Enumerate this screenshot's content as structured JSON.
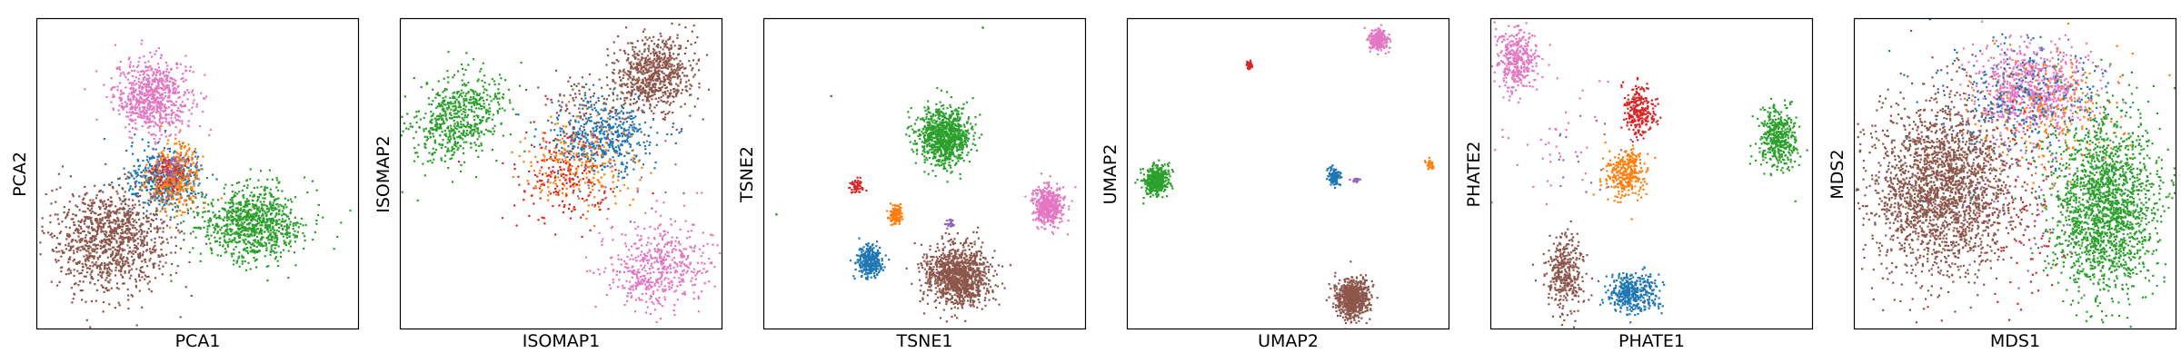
{
  "colors": {
    "blue": "#1f77b4",
    "orange": "#ff7f0e",
    "green": "#2ca02c",
    "red": "#d62728",
    "purple": "#9467bd",
    "brown": "#8c564b",
    "pink": "#e377c2"
  },
  "chart_data": [
    {
      "type": "scatter",
      "xlabel": "PCA1",
      "ylabel": "PCA2",
      "xlim": [
        0,
        100
      ],
      "ylim": [
        0,
        100
      ],
      "grid": false,
      "clusters": [
        {
          "color": "pink",
          "cx": 36,
          "cy": 75,
          "sx": 6,
          "sy": 6,
          "n": 700
        },
        {
          "color": "blue",
          "cx": 40,
          "cy": 48,
          "sx": 6,
          "sy": 5,
          "n": 450
        },
        {
          "color": "orange",
          "cx": 43,
          "cy": 49,
          "sx": 4,
          "sy": 5,
          "n": 350
        },
        {
          "color": "red",
          "cx": 41,
          "cy": 50,
          "sx": 3,
          "sy": 3,
          "n": 80
        },
        {
          "color": "purple",
          "cx": 42,
          "cy": 51,
          "sx": 3,
          "sy": 3,
          "n": 60
        },
        {
          "color": "green",
          "cx": 67,
          "cy": 34,
          "sx": 8,
          "sy": 6,
          "n": 900
        },
        {
          "color": "brown",
          "cx": 23,
          "cy": 29,
          "sx": 9,
          "sy": 8,
          "n": 1100
        }
      ]
    },
    {
      "type": "scatter",
      "xlabel": "ISOMAP1",
      "ylabel": "ISOMAP2",
      "xlim": [
        0,
        100
      ],
      "ylim": [
        0,
        100
      ],
      "grid": false,
      "clusters": [
        {
          "color": "green",
          "cx": 18,
          "cy": 68,
          "sx": 6,
          "sy": 8,
          "n": 600,
          "rot": -40
        },
        {
          "color": "brown",
          "cx": 79,
          "cy": 82,
          "sx": 6,
          "sy": 6,
          "n": 700
        },
        {
          "color": "brown",
          "cx": 60,
          "cy": 72,
          "sx": 8,
          "sy": 6,
          "n": 120
        },
        {
          "color": "blue",
          "cx": 63,
          "cy": 62,
          "sx": 8,
          "sy": 6,
          "n": 450
        },
        {
          "color": "orange",
          "cx": 56,
          "cy": 52,
          "sx": 8,
          "sy": 7,
          "n": 250
        },
        {
          "color": "red",
          "cx": 50,
          "cy": 50,
          "sx": 8,
          "sy": 9,
          "n": 180
        },
        {
          "color": "pink",
          "cx": 80,
          "cy": 20,
          "sx": 8,
          "sy": 7,
          "n": 500,
          "rot": 35
        },
        {
          "color": "purple",
          "cx": 65,
          "cy": 55,
          "sx": 10,
          "sy": 8,
          "n": 40
        }
      ]
    },
    {
      "type": "scatter",
      "xlabel": "TSNE1",
      "ylabel": "TSNE2",
      "xlim": [
        0,
        100
      ],
      "ylim": [
        0,
        100
      ],
      "grid": false,
      "clusters": [
        {
          "color": "green",
          "cx": 56,
          "cy": 62,
          "sx": 4,
          "sy": 4.5,
          "n": 900
        },
        {
          "color": "brown",
          "cx": 60,
          "cy": 17,
          "sx": 5,
          "sy": 5,
          "n": 1100
        },
        {
          "color": "pink",
          "cx": 88,
          "cy": 40,
          "sx": 2.5,
          "sy": 3,
          "n": 450
        },
        {
          "color": "blue",
          "cx": 33,
          "cy": 22,
          "sx": 2,
          "sy": 2.5,
          "n": 300
        },
        {
          "color": "orange",
          "cx": 41,
          "cy": 37,
          "sx": 1.2,
          "sy": 1.5,
          "n": 120
        },
        {
          "color": "red",
          "cx": 29,
          "cy": 46,
          "sx": 0.9,
          "sy": 1.1,
          "n": 60
        },
        {
          "color": "purple",
          "cx": 58,
          "cy": 34,
          "sx": 0.6,
          "sy": 0.8,
          "n": 25
        }
      ],
      "outliers": [
        {
          "color": "green",
          "x": 68,
          "y": 97
        },
        {
          "color": "green",
          "x": 21,
          "y": 75
        },
        {
          "color": "green",
          "x": 4,
          "y": 37
        }
      ]
    },
    {
      "type": "scatter",
      "xlabel": "UMAP2",
      "ylabel": "UMAP2",
      "xlim": [
        0,
        100
      ],
      "ylim": [
        0,
        100
      ],
      "grid": false,
      "clusters": [
        {
          "color": "pink",
          "cx": 78,
          "cy": 93,
          "sx": 1.5,
          "sy": 1.8,
          "n": 220
        },
        {
          "color": "red",
          "cx": 38,
          "cy": 85,
          "sx": 0.6,
          "sy": 0.7,
          "n": 40
        },
        {
          "color": "green",
          "cx": 9,
          "cy": 48,
          "sx": 2,
          "sy": 2.4,
          "n": 400
        },
        {
          "color": "blue",
          "cx": 64,
          "cy": 49,
          "sx": 1.1,
          "sy": 1.3,
          "n": 120
        },
        {
          "color": "purple",
          "cx": 71,
          "cy": 48,
          "sx": 0.6,
          "sy": 0.4,
          "n": 20
        },
        {
          "color": "orange",
          "cx": 94,
          "cy": 53,
          "sx": 0.7,
          "sy": 0.8,
          "n": 40
        },
        {
          "color": "brown",
          "cx": 70,
          "cy": 10,
          "sx": 2.6,
          "sy": 3.2,
          "n": 700
        }
      ]
    },
    {
      "type": "scatter",
      "xlabel": "PHATE1",
      "ylabel": "PHATE2",
      "xlim": [
        0,
        100
      ],
      "ylim": [
        0,
        100
      ],
      "grid": false,
      "clusters": [
        {
          "color": "pink",
          "cx": 8,
          "cy": 87,
          "sx": 3,
          "sy": 5,
          "n": 350
        },
        {
          "color": "pink",
          "cx": 20,
          "cy": 62,
          "sx": 10,
          "sy": 12,
          "n": 40
        },
        {
          "color": "green",
          "cx": 89,
          "cy": 62,
          "sx": 3,
          "sy": 5,
          "n": 400
        },
        {
          "color": "red",
          "cx": 46,
          "cy": 70,
          "sx": 2.5,
          "sy": 4,
          "n": 250
        },
        {
          "color": "orange",
          "cx": 42,
          "cy": 50,
          "sx": 3,
          "sy": 4,
          "n": 300
        },
        {
          "color": "purple",
          "cx": 30,
          "cy": 55,
          "sx": 6,
          "sy": 8,
          "n": 20
        },
        {
          "color": "brown",
          "cx": 23,
          "cy": 18,
          "sx": 3,
          "sy": 6,
          "n": 350
        },
        {
          "color": "blue",
          "cx": 44,
          "cy": 12,
          "sx": 4,
          "sy": 3,
          "n": 400
        }
      ]
    },
    {
      "type": "scatter",
      "xlabel": "MDS1",
      "ylabel": "MDS2",
      "xlim": [
        0,
        100
      ],
      "ylim": [
        0,
        100
      ],
      "grid": false,
      "clusters": [
        {
          "color": "pink",
          "cx": 55,
          "cy": 77,
          "sx": 9,
          "sy": 7,
          "n": 800
        },
        {
          "color": "orange",
          "cx": 60,
          "cy": 70,
          "sx": 12,
          "sy": 10,
          "n": 250
        },
        {
          "color": "blue",
          "cx": 52,
          "cy": 72,
          "sx": 14,
          "sy": 10,
          "n": 300
        },
        {
          "color": "red",
          "cx": 52,
          "cy": 38,
          "sx": 8,
          "sy": 20,
          "n": 100
        },
        {
          "color": "purple",
          "cx": 50,
          "cy": 50,
          "sx": 12,
          "sy": 18,
          "n": 80
        },
        {
          "color": "green",
          "cx": 78,
          "cy": 40,
          "sx": 8,
          "sy": 14,
          "n": 1800
        },
        {
          "color": "brown",
          "cx": 27,
          "cy": 45,
          "sx": 11,
          "sy": 14,
          "n": 2200
        }
      ]
    }
  ]
}
